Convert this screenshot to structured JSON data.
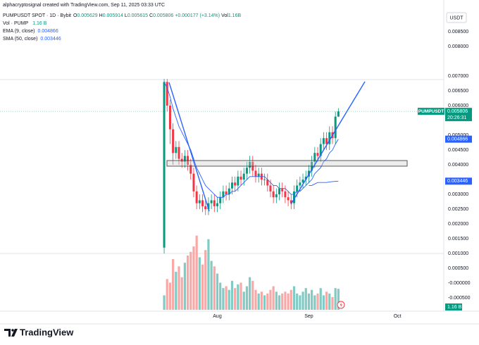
{
  "chart_data": {
    "type": "candlestick",
    "attribution": "alphacryptosignal created with TradingView.com, Sep 11, 2025 03:33 UTC",
    "legend": {
      "title": "PUMPUSDT SPOT · 1D · Bybit",
      "o": "O",
      "h": "H",
      "l": "L",
      "c": "C",
      "change": "+0.000177 (+3.14%)",
      "vol": "Vol",
      "vol_value": "1.16B"
    },
    "volume_legend": {
      "name": "Vol · PUMP",
      "value": "1.16 B"
    },
    "currency": "USDT",
    "symbol": "PUMPUSDT",
    "countdown": "20:26:31",
    "logo": "TradingView",
    "up_color": "#089981",
    "down_color": "#f23645",
    "volume_up_color": "#80cbc4",
    "volume_down_color": "#f7a9a7",
    "x": [
      0,
      1,
      2,
      3,
      4,
      5,
      6,
      7,
      8,
      9,
      10,
      11,
      12,
      13,
      14,
      15,
      16,
      17,
      18,
      19,
      20,
      21,
      22,
      23,
      24,
      25,
      26,
      27,
      28,
      29,
      30,
      31,
      32,
      33,
      34,
      35,
      36,
      37,
      38,
      39,
      40,
      41,
      42,
      43,
      44,
      45,
      46,
      47,
      48,
      49,
      50,
      51,
      52,
      53,
      54,
      55,
      56,
      57,
      58,
      59
    ],
    "open": [
      0.0012,
      0.0068,
      0.006,
      0.0052,
      0.0044,
      0.0046,
      0.0042,
      0.0041,
      0.0043,
      0.004,
      0.0037,
      0.0031,
      0.0027,
      0.0028,
      0.0026,
      0.0025,
      0.0027,
      0.0028,
      0.0026,
      0.0027,
      0.0029,
      0.0031,
      0.003,
      0.0032,
      0.0034,
      0.0033,
      0.0036,
      0.0035,
      0.0037,
      0.0039,
      0.0041,
      0.0038,
      0.0036,
      0.0037,
      0.0035,
      0.0035,
      0.0033,
      0.0031,
      0.0029,
      0.003,
      0.0032,
      0.0031,
      0.0029,
      0.0028,
      0.0027,
      0.0031,
      0.0033,
      0.0034,
      0.0035,
      0.0036,
      0.0038,
      0.0041,
      0.0044,
      0.0043,
      0.0047,
      0.0049,
      0.0047,
      0.0051,
      0.0049,
      0.005629
    ],
    "high": [
      0.0069,
      0.0069,
      0.0062,
      0.0054,
      0.0048,
      0.0048,
      0.0044,
      0.0045,
      0.0045,
      0.0042,
      0.0039,
      0.0033,
      0.003,
      0.003,
      0.0028,
      0.0029,
      0.003,
      0.003,
      0.0029,
      0.0031,
      0.0033,
      0.0033,
      0.0034,
      0.0036,
      0.0036,
      0.0038,
      0.0038,
      0.0039,
      0.0041,
      0.0043,
      0.0043,
      0.004,
      0.0039,
      0.0039,
      0.0037,
      0.0037,
      0.0035,
      0.0033,
      0.0032,
      0.0034,
      0.0034,
      0.0033,
      0.0031,
      0.003,
      0.0033,
      0.0035,
      0.0036,
      0.0037,
      0.0038,
      0.004,
      0.0043,
      0.0046,
      0.0046,
      0.0049,
      0.0051,
      0.0051,
      0.0053,
      0.0053,
      0.0058,
      0.005914
    ],
    "low": [
      0.001,
      0.0058,
      0.0047,
      0.004,
      0.0042,
      0.004,
      0.0039,
      0.0039,
      0.0038,
      0.0035,
      0.0029,
      0.0025,
      0.0025,
      0.0024,
      0.0023,
      0.0023,
      0.0025,
      0.0024,
      0.0024,
      0.0025,
      0.0027,
      0.0028,
      0.0028,
      0.003,
      0.0031,
      0.0031,
      0.0033,
      0.0033,
      0.0035,
      0.0037,
      0.0036,
      0.0034,
      0.0034,
      0.0033,
      0.0033,
      0.0031,
      0.0029,
      0.0027,
      0.0027,
      0.0028,
      0.0029,
      0.0027,
      0.0026,
      0.0025,
      0.0025,
      0.0029,
      0.0031,
      0.0032,
      0.0033,
      0.0034,
      0.0036,
      0.0039,
      0.0041,
      0.0041,
      0.0045,
      0.0045,
      0.0045,
      0.0047,
      0.0047,
      0.005615
    ],
    "close": [
      0.0068,
      0.006,
      0.0052,
      0.0044,
      0.0046,
      0.0042,
      0.0041,
      0.0043,
      0.004,
      0.0037,
      0.0031,
      0.0027,
      0.0028,
      0.0026,
      0.0025,
      0.0027,
      0.0028,
      0.0026,
      0.0027,
      0.0029,
      0.0031,
      0.003,
      0.0032,
      0.0034,
      0.0033,
      0.0036,
      0.0035,
      0.0037,
      0.0039,
      0.0041,
      0.0038,
      0.0036,
      0.0037,
      0.0035,
      0.0035,
      0.0033,
      0.0031,
      0.0029,
      0.003,
      0.0032,
      0.0031,
      0.0029,
      0.0028,
      0.0027,
      0.0031,
      0.0033,
      0.0034,
      0.0035,
      0.0036,
      0.0038,
      0.0041,
      0.0044,
      0.0043,
      0.0047,
      0.0049,
      0.0047,
      0.0051,
      0.0049,
      0.005629,
      0.005806
    ],
    "volume": [
      0.8,
      1.7,
      1.5,
      2.8,
      2.1,
      2.4,
      1.8,
      2.6,
      3.0,
      3.2,
      3.5,
      4.1,
      2.9,
      2.5,
      3.3,
      3.9,
      2.7,
      2.4,
      2.0,
      1.5,
      1.2,
      1.3,
      1.1,
      1.6,
      1.2,
      1.4,
      1.5,
      1.0,
      1.3,
      1.8,
      1.6,
      1.1,
      0.9,
      1.0,
      0.8,
      0.9,
      1.1,
      1.3,
      1.0,
      0.8,
      0.9,
      1.0,
      0.9,
      1.1,
      1.3,
      0.9,
      0.8,
      1.0,
      1.2,
      0.9,
      1.1,
      0.8,
      0.9,
      1.2,
      0.8,
      1.0,
      0.9,
      0.7,
      1.2,
      1.16
    ],
    "vlim": [
      0,
      4.2
    ],
    "ema": {
      "name": "EMA (9, close)",
      "color": "#2962ff",
      "values": [
        0.0068,
        0.0066,
        0.0063,
        0.0059,
        0.0056,
        0.0053,
        0.0051,
        0.0049,
        0.0047,
        0.0045,
        0.0042,
        0.0039,
        0.0037,
        0.0035,
        0.0033,
        0.0032,
        0.0031,
        0.003,
        0.0029,
        0.0029,
        0.0029,
        0.003,
        0.003,
        0.0031,
        0.0031,
        0.0032,
        0.0033,
        0.0034,
        0.0035,
        0.0036,
        0.0036,
        0.0036,
        0.0036,
        0.0036,
        0.0036,
        0.0035,
        0.0034,
        0.0033,
        0.0033,
        0.0032,
        0.0032,
        0.0032,
        0.0031,
        0.003,
        0.003,
        0.0031,
        0.0031,
        0.0032,
        0.0033,
        0.0034,
        0.0035,
        0.0037,
        0.0038,
        0.0039,
        0.0041,
        0.0042,
        0.0044,
        0.0045,
        0.0047,
        0.004866
      ]
    },
    "sma": {
      "name": "SMA (50, close)",
      "color": "#2962ff",
      "values": [
        null,
        null,
        null,
        null,
        null,
        null,
        null,
        null,
        null,
        null,
        null,
        null,
        null,
        null,
        null,
        null,
        null,
        null,
        null,
        null,
        null,
        null,
        null,
        null,
        null,
        null,
        null,
        null,
        null,
        null,
        null,
        null,
        null,
        null,
        null,
        null,
        null,
        null,
        null,
        null,
        null,
        null,
        null,
        null,
        null,
        null,
        null,
        null,
        null,
        0.0033,
        0.0033,
        0.00335,
        0.0034,
        0.0034,
        0.0034,
        0.0034,
        0.00342,
        0.00343,
        0.00344,
        0.003446
      ]
    },
    "xlim": [
      -55.6,
      94.7
    ],
    "xticks": [
      {
        "value": 18,
        "label": "Aug"
      },
      {
        "value": 49,
        "label": "Sep"
      },
      {
        "value": 79,
        "label": "Oct"
      }
    ],
    "ylim": [
      -0.00095,
      0.00957
    ],
    "yticks": [
      {
        "value": 0.0085,
        "label": "0.008500"
      },
      {
        "value": 0.008,
        "label": "0.008000"
      },
      {
        "value": 0.007,
        "label": "0.007000"
      },
      {
        "value": 0.0065,
        "label": "0.006500"
      },
      {
        "value": 0.006,
        "label": "0.006000"
      },
      {
        "value": 0.005,
        "label": "0.005000"
      },
      {
        "value": 0.0045,
        "label": "0.004500"
      },
      {
        "value": 0.004,
        "label": "0.004000"
      },
      {
        "value": 0.003,
        "label": "0.003000"
      },
      {
        "value": 0.0025,
        "label": "0.002500"
      },
      {
        "value": 0.002,
        "label": "0.002000"
      },
      {
        "value": 0.0015,
        "label": "0.001500"
      },
      {
        "value": 0.001,
        "label": "0.001000"
      },
      {
        "value": 0.0005,
        "label": "0.000500"
      },
      {
        "value": 0,
        "label": "-0.000000"
      },
      {
        "value": -0.0005,
        "label": "-0.000500"
      }
    ],
    "grid": false
  }
}
